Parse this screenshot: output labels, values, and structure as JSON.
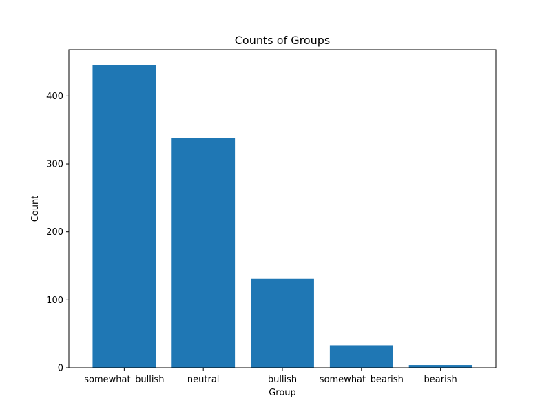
{
  "chart_data": {
    "type": "bar",
    "title": "Counts of Groups",
    "xlabel": "Group",
    "ylabel": "Count",
    "categories": [
      "somewhat_bullish",
      "neutral",
      "bullish",
      "somewhat_bearish",
      "bearish"
    ],
    "values": [
      446,
      338,
      131,
      33,
      4
    ],
    "ylim": [
      0,
      468.3
    ],
    "yticks": [
      0,
      100,
      200,
      300,
      400
    ],
    "grid": false,
    "bar_color": "#1f77b4"
  }
}
